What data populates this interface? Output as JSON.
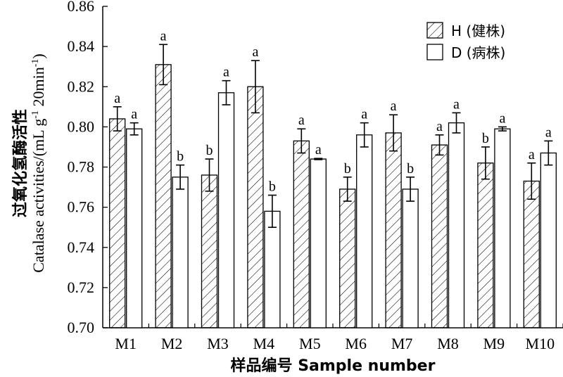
{
  "chart_data": {
    "type": "bar",
    "title": "",
    "ylabel_cn": "过氧化氢酶活性",
    "ylabel_en": "Catalase activities/(mL g",
    "ylabel_sup": "-1",
    "ylabel_tail": " 20min",
    "ylabel_sup2": "-1",
    "ylabel_close": ")",
    "xlabel": "样品编号 Sample number",
    "ylim": [
      0.7,
      0.86
    ],
    "yticks": [
      "0.70",
      "0.72",
      "0.74",
      "0.76",
      "0.78",
      "0.80",
      "0.82",
      "0.84",
      "0.86"
    ],
    "ytick_values": [
      0.7,
      0.72,
      0.74,
      0.76,
      0.78,
      0.8,
      0.82,
      0.84,
      0.86
    ],
    "categories": [
      "M1",
      "M2",
      "M3",
      "M4",
      "M5",
      "M6",
      "M7",
      "M8",
      "M9",
      "M10"
    ],
    "series": [
      {
        "name": "H (健株)",
        "pattern": "hatched",
        "values": [
          0.804,
          0.831,
          0.776,
          0.82,
          0.793,
          0.769,
          0.797,
          0.791,
          0.782,
          0.773
        ],
        "errors": [
          0.006,
          0.01,
          0.008,
          0.013,
          0.006,
          0.006,
          0.009,
          0.005,
          0.008,
          0.009
        ],
        "labels": [
          "a",
          "a",
          "b",
          "a",
          "a",
          "b",
          "a",
          "a",
          "b",
          "a"
        ]
      },
      {
        "name": "D (病株)",
        "pattern": "open",
        "values": [
          0.799,
          0.775,
          0.817,
          0.758,
          0.784,
          0.796,
          0.769,
          0.802,
          0.799,
          0.787
        ],
        "errors": [
          0.003,
          0.006,
          0.006,
          0.008,
          0.0003,
          0.006,
          0.006,
          0.005,
          0.001,
          0.006
        ],
        "labels": [
          "a",
          "b",
          "a",
          "b",
          "a",
          "a",
          "b",
          "a",
          "a",
          "a"
        ]
      }
    ],
    "legend_position": "top-right",
    "grid": false
  }
}
